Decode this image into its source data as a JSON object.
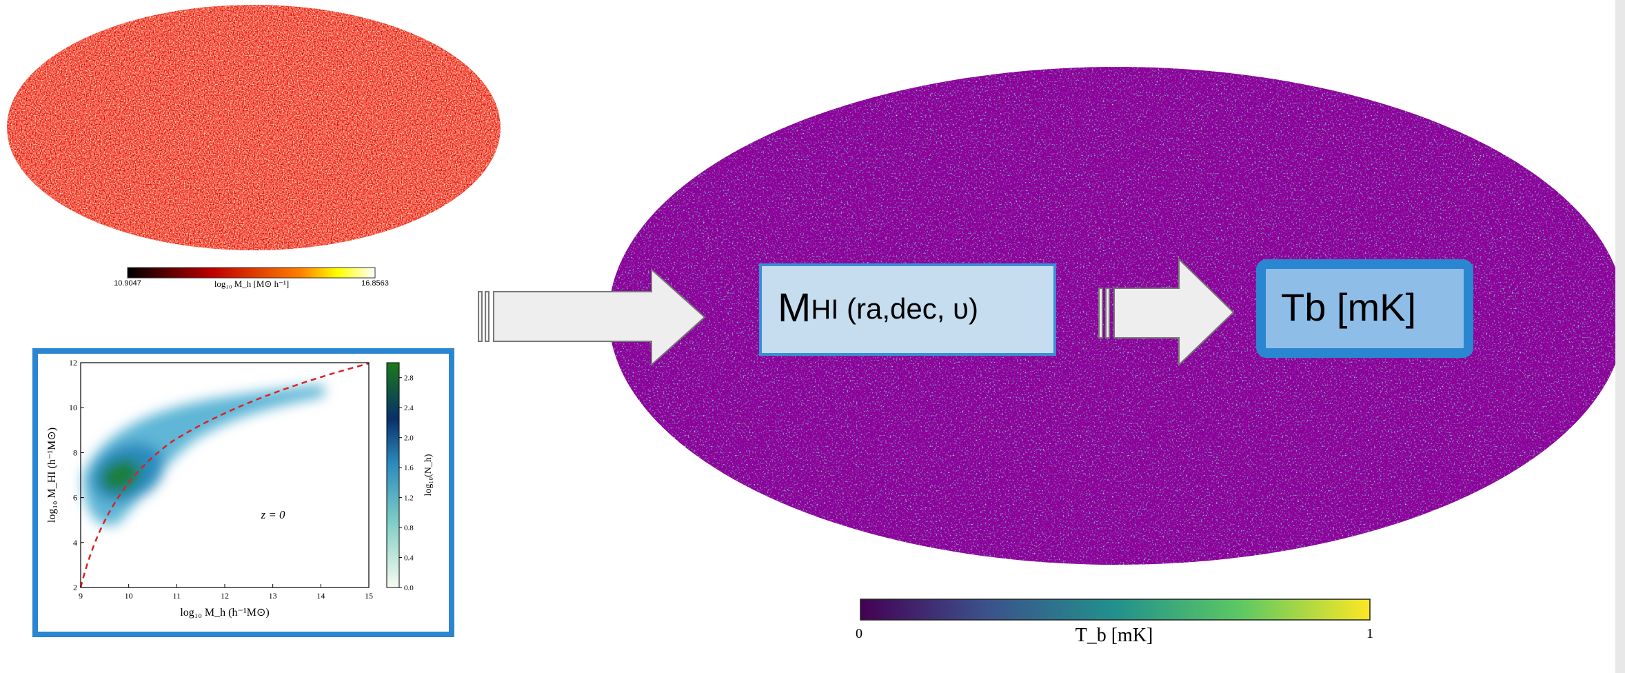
{
  "halo_map": {
    "colorbar_min": "10.9047",
    "colorbar_label": "log₁₀ M_h [M⊙ h⁻¹]",
    "colorbar_max": "16.8563"
  },
  "relation_plot": {
    "x_label": "log₁₀ M_h (h⁻¹M⊙)",
    "y_label": "log₁₀ M_HI (h⁻¹M⊙)",
    "annotation": "z = 0",
    "xlim": [
      9,
      15
    ],
    "xticks": [
      9,
      10,
      11,
      12,
      13,
      14,
      15
    ],
    "ylim": [
      2,
      12
    ],
    "yticks": [
      2,
      4,
      6,
      8,
      10,
      12
    ],
    "colorbar_label": "log₁₀(N_h)",
    "colorbar_lim": [
      0,
      3
    ],
    "colorbar_ticks": [
      {
        "value": 0,
        "label": "0.0"
      },
      {
        "value": 0.4,
        "label": "0.4"
      },
      {
        "value": 0.8,
        "label": "0.8"
      },
      {
        "value": 1.2,
        "label": "1.2"
      },
      {
        "value": 1.6,
        "label": "1.6"
      },
      {
        "value": 2,
        "label": "2.0"
      },
      {
        "value": 2.4,
        "label": "2.4"
      },
      {
        "value": 2.8,
        "label": "2.8"
      }
    ]
  },
  "flow": {
    "box_1": {
      "main": "M",
      "sub": "HI",
      "rest": " (ra,dec, υ)"
    },
    "box_2": "Tb [mK]"
  },
  "temperature_map": {
    "colorbar_min": "0",
    "colorbar_label": "T_b [mK]",
    "colorbar_max": "1"
  }
}
